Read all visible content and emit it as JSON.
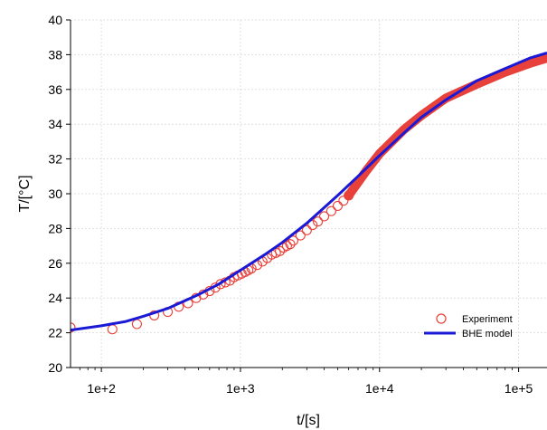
{
  "chart_data": {
    "type": "scatter",
    "xlabel": "t/[s]",
    "ylabel": "T/[°C]",
    "x_scale": "log",
    "xlim": [
      60,
      160000
    ],
    "ylim": [
      20,
      40
    ],
    "x_ticks": [
      100,
      1000,
      10000,
      100000
    ],
    "x_tick_labels": [
      "1e+2",
      "1e+3",
      "1e+4",
      "1e+5"
    ],
    "y_ticks": [
      20,
      22,
      24,
      26,
      28,
      30,
      32,
      34,
      36,
      38,
      40
    ],
    "y_tick_labels": [
      "20",
      "22",
      "24",
      "26",
      "28",
      "30",
      "32",
      "34",
      "36",
      "38",
      "40"
    ],
    "grid": true,
    "legend_position": "lower-right",
    "series": [
      {
        "name": "Experiment",
        "kind": "markers",
        "marker": "open-circle",
        "color": "#e8403a",
        "x": [
          60,
          120,
          180,
          240,
          300,
          360,
          420,
          480,
          540,
          600,
          660,
          720,
          780,
          840,
          900,
          960,
          1020,
          1080,
          1140,
          1200,
          1320,
          1440,
          1560,
          1680,
          1800,
          1920,
          2040,
          2160,
          2280,
          2400,
          2700,
          3000,
          3300,
          3600,
          4000,
          4500,
          5000,
          5500,
          6000
        ],
        "y": [
          22.3,
          22.2,
          22.5,
          23.0,
          23.2,
          23.5,
          23.7,
          24.0,
          24.2,
          24.4,
          24.6,
          24.8,
          24.9,
          25.0,
          25.2,
          25.3,
          25.4,
          25.5,
          25.6,
          25.7,
          25.9,
          26.1,
          26.3,
          26.5,
          26.6,
          26.7,
          26.9,
          27.0,
          27.1,
          27.3,
          27.6,
          27.9,
          28.2,
          28.4,
          28.7,
          29.0,
          29.3,
          29.6,
          29.9
        ]
      },
      {
        "name": "Experiment",
        "kind": "dense-band",
        "color": "#e8403a",
        "x": [
          6000,
          8000,
          10000,
          15000,
          20000,
          30000,
          50000,
          80000,
          120000,
          160000
        ],
        "y": [
          29.9,
          31.3,
          32.3,
          33.7,
          34.5,
          35.5,
          36.3,
          37.0,
          37.5,
          37.8
        ]
      },
      {
        "name": "BHE model",
        "kind": "line",
        "color": "#1a1ad6",
        "x": [
          60,
          100,
          150,
          200,
          300,
          500,
          700,
          1000,
          1500,
          2000,
          3000,
          5000,
          7000,
          10000,
          15000,
          20000,
          30000,
          50000,
          80000,
          120000,
          160000
        ],
        "y": [
          22.15,
          22.4,
          22.65,
          22.95,
          23.4,
          24.2,
          24.8,
          25.6,
          26.5,
          27.2,
          28.3,
          29.9,
          31.0,
          32.2,
          33.5,
          34.4,
          35.4,
          36.5,
          37.2,
          37.8,
          38.1
        ]
      }
    ]
  }
}
